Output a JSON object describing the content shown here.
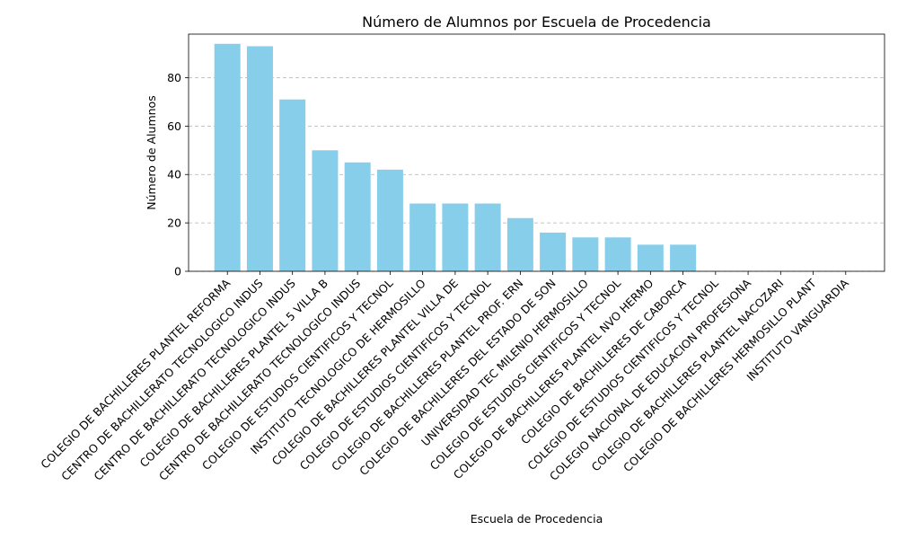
{
  "chart_data": {
    "type": "bar",
    "title": "Número de Alumnos por Escuela de Procedencia",
    "xlabel": "Escuela de Procedencia",
    "ylabel": "Número de Alumnos",
    "ylim": [
      0,
      98
    ],
    "yticks": [
      0,
      20,
      40,
      60,
      80
    ],
    "grid": "y-dashed",
    "bar_color": "#87CEEB",
    "categories": [
      "COLEGIO DE BACHILLERES PLANTEL REFORMA",
      "CENTRO DE BACHILLERATO TECNOLOGICO INDUS",
      "CENTRO DE BACHILLERATO TECNOLOGICO INDUS",
      "COLEGIO DE BACHILLERES PLANTEL 5 VILLA B",
      "CENTRO DE BACHILLERATO TECNOLOGICO INDUS",
      "COLEGIO DE ESTUDIOS CIENTIFICOS Y TECNOL",
      "INSTITUTO TECNOLOGICO DE HERMOSILLO",
      "COLEGIO DE BACHILLERES PLANTEL VILLA DE",
      "COLEGIO DE ESTUDIOS CIENTIFICOS Y TECNOL",
      "COLEGIO DE BACHILLERES PLANTEL PROF. ERN",
      "COLEGIO DE BACHILLERES DEL ESTADO DE SON",
      "UNIVERSIDAD TEC MILENIO HERMOSILLO",
      "COLEGIO DE ESTUDIOS CIENTIFICOS Y TECNOL",
      "COLEGIO DE BACHILLERES PLANTEL NVO HERMO",
      "COLEGIO DE BACHILLERES DE CABORCA",
      "COLEGIO DE ESTUDIOS CIENTIFICOS Y TECNOL",
      "COLEGIO NACIONAL DE EDUCACION PROFESIONA",
      "COLEGIO DE BACHILLERES PLANTEL NACOZARI",
      "COLEGIO DE BACHILLERES HERMOSILLO  PLANT",
      "INSTITUTO VANGUARDIA"
    ],
    "values": [
      94,
      93,
      71,
      50,
      45,
      42,
      28,
      28,
      28,
      22,
      16,
      14,
      14,
      11,
      11,
      0,
      0,
      0,
      0,
      0
    ]
  }
}
